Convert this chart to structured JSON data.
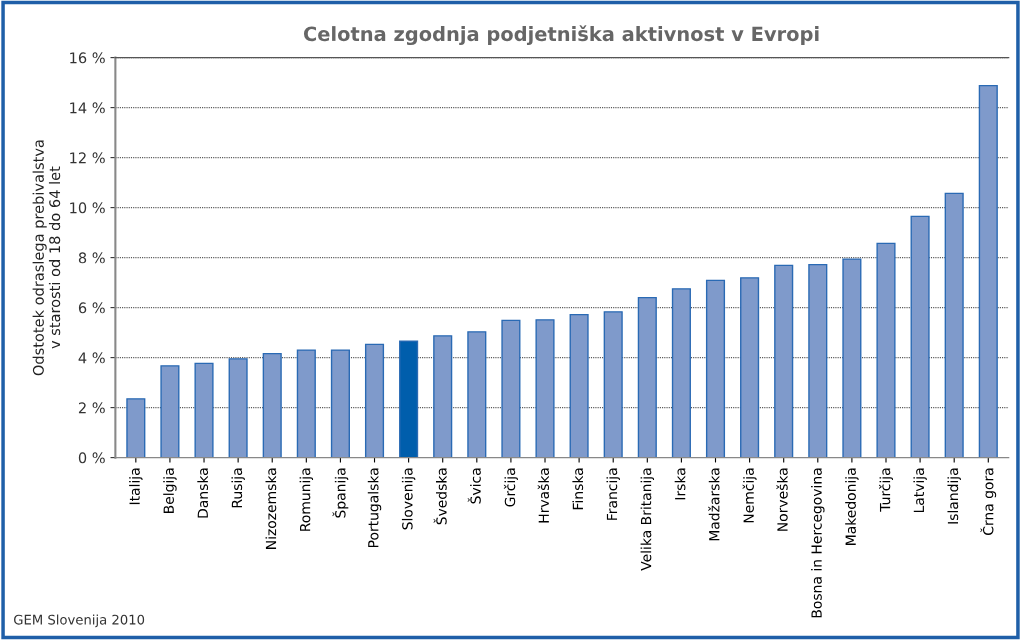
{
  "chart_data": {
    "type": "bar",
    "title": "Celotna zgodnja podjetniška aktivnost v Evropi",
    "ylabel": "Odstotek odraslega prebivalstva\nv starosti od 18 do 64 let",
    "categories": [
      "Italija",
      "Belgija",
      "Danska",
      "Rusija",
      "Nizozemska",
      "Romunija",
      "Španija",
      "Portugalska",
      "Slovenija",
      "Švedska",
      "Švica",
      "Grčija",
      "Hrvaška",
      "Finska",
      "Francija",
      "Velika Britanija",
      "Irska",
      "Madžarska",
      "Nemčija",
      "Norveška",
      "Bosna in Hercegovina",
      "Makedonija",
      "Turčija",
      "Latvija",
      "Islandija",
      "Črna gora"
    ],
    "values": [
      2.35,
      3.67,
      3.77,
      3.95,
      4.16,
      4.3,
      4.3,
      4.53,
      4.66,
      4.87,
      5.03,
      5.49,
      5.51,
      5.72,
      5.83,
      6.4,
      6.75,
      7.09,
      7.19,
      7.69,
      7.72,
      7.94,
      8.57,
      9.65,
      10.57,
      14.88
    ],
    "colors": [
      "#7f9acb",
      "#7f9acb",
      "#7f9acb",
      "#7f9acb",
      "#7f9acb",
      "#7f9acb",
      "#7f9acb",
      "#7f9acb",
      "#005eac",
      "#7f9acb",
      "#7f9acb",
      "#7f9acb",
      "#7f9acb",
      "#7f9acb",
      "#7f9acb",
      "#7f9acb",
      "#7f9acb",
      "#7f9acb",
      "#7f9acb",
      "#7f9acb",
      "#7f9acb",
      "#7f9acb",
      "#7f9acb",
      "#7f9acb",
      "#7f9acb",
      "#7f9acb"
    ],
    "ylim": [
      0,
      16
    ],
    "yticks": [
      {
        "value": 0,
        "label": "0 %"
      },
      {
        "value": 2,
        "label": "2 %"
      },
      {
        "value": 4,
        "label": "4 %"
      },
      {
        "value": 6,
        "label": "6 %"
      },
      {
        "value": 8,
        "label": "8 %"
      },
      {
        "value": 10,
        "label": "10 %"
      },
      {
        "value": 12,
        "label": "12 %"
      },
      {
        "value": 14,
        "label": "14 %"
      },
      {
        "value": 16,
        "label": "16 %"
      }
    ],
    "grid": "y",
    "annotations": [
      "GEM Slovenija 2010"
    ]
  }
}
